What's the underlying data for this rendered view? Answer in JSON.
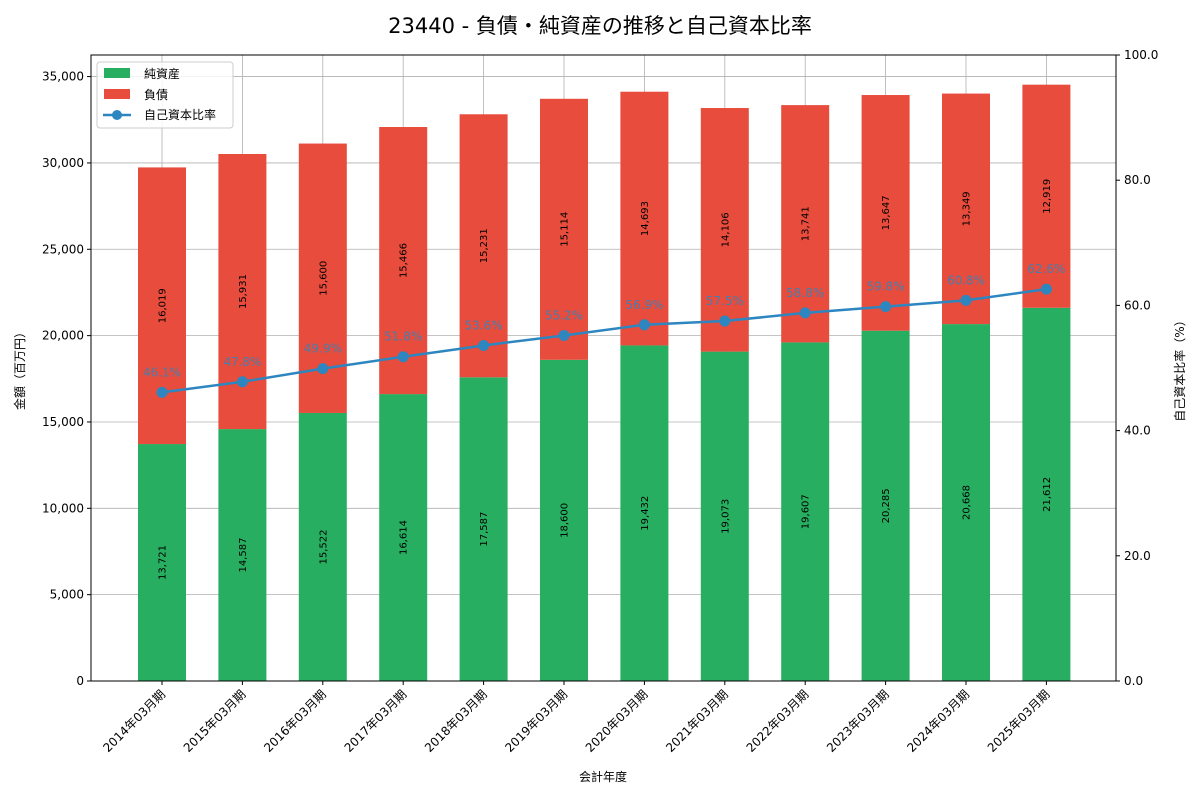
{
  "chart_data": {
    "type": "bar",
    "title": "23440 - 負債・純資産の推移と自己資本比率",
    "xlabel": "会計年度",
    "ylabel_left": "金額（百万円）",
    "ylabel_right": "自己資本比率（%）",
    "ylim_left": [
      0,
      36250
    ],
    "ylim_right": [
      0,
      100
    ],
    "left_ticks": [
      "0",
      "5,000",
      "10,000",
      "15,000",
      "20,000",
      "25,000",
      "30,000",
      "35,000"
    ],
    "right_ticks": [
      "0.0",
      "20.0",
      "40.0",
      "60.0",
      "80.0",
      "100.0"
    ],
    "grid": true,
    "legend_position": "top-left",
    "categories": [
      "2014年03月期",
      "2015年03月期",
      "2016年03月期",
      "2017年03月期",
      "2018年03月期",
      "2019年03月期",
      "2020年03月期",
      "2021年03月期",
      "2022年03月期",
      "2023年03月期",
      "2024年03月期",
      "2025年03月期"
    ],
    "series": [
      {
        "name": "純資産",
        "kind": "bar-stacked-bottom",
        "color": "#27ae60",
        "values": [
          13721,
          14587,
          15522,
          16614,
          17587,
          18600,
          19432,
          19073,
          19607,
          20285,
          20668,
          21612
        ],
        "labels": [
          "13,721",
          "14,587",
          "15,522",
          "16,614",
          "17,587",
          "18,600",
          "19,432",
          "19,073",
          "19,607",
          "20,285",
          "20,668",
          "21,612"
        ]
      },
      {
        "name": "負債",
        "kind": "bar-stacked-top",
        "color": "#e74c3c",
        "values": [
          16019,
          15931,
          15600,
          15466,
          15231,
          15114,
          14693,
          14106,
          13741,
          13647,
          13349,
          12919
        ],
        "labels": [
          "16,019",
          "15,931",
          "15,600",
          "15,466",
          "15,231",
          "15,114",
          "14,693",
          "14,106",
          "13,741",
          "13,647",
          "13,349",
          "12,919"
        ]
      },
      {
        "name": "自己資本比率",
        "kind": "line-right-axis",
        "color": "#2e86c1",
        "values": [
          46.1,
          47.8,
          49.9,
          51.8,
          53.6,
          55.2,
          56.9,
          57.5,
          58.8,
          59.8,
          60.8,
          62.6
        ],
        "labels": [
          "46.1%",
          "47.8%",
          "49.9%",
          "51.8%",
          "53.6%",
          "55.2%",
          "56.9%",
          "57.5%",
          "58.8%",
          "59.8%",
          "60.8%",
          "62.6%"
        ]
      }
    ]
  }
}
